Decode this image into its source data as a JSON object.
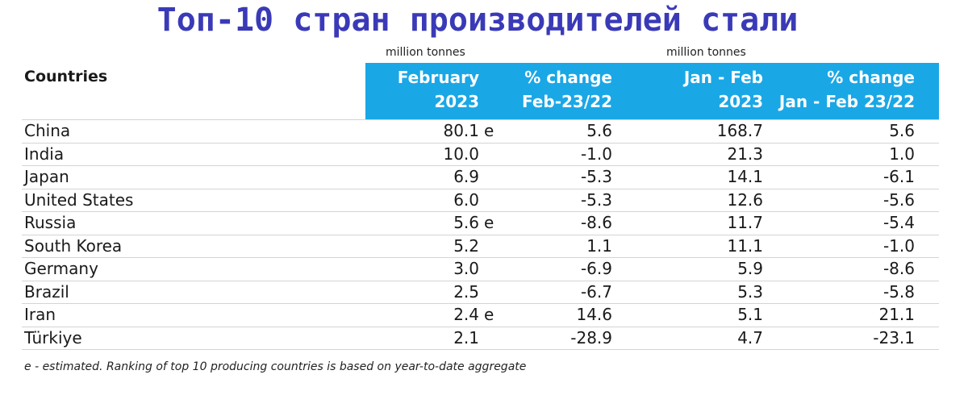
{
  "title": "Топ-10 стран производителей стали",
  "units": {
    "col1": "million tonnes",
    "col3": "million tonnes"
  },
  "headers": {
    "countries": "Countries",
    "col1": {
      "line1": "February",
      "line2": "2023"
    },
    "col2": {
      "line1": "% change",
      "line2": "Feb-23/22"
    },
    "col3": {
      "line1": "Jan - Feb",
      "line2": "2023"
    },
    "col4": {
      "line1": "% change",
      "line2": "Jan - Feb 23/22"
    }
  },
  "rows": [
    {
      "country": "China",
      "feb2023": "80.1",
      "est": "e",
      "pct_feb": "5.6",
      "janfeb2023": "168.7",
      "pct_janfeb": "5.6"
    },
    {
      "country": "India",
      "feb2023": "10.0",
      "est": "",
      "pct_feb": "-1.0",
      "janfeb2023": "21.3",
      "pct_janfeb": "1.0"
    },
    {
      "country": "Japan",
      "feb2023": "6.9",
      "est": "",
      "pct_feb": "-5.3",
      "janfeb2023": "14.1",
      "pct_janfeb": "-6.1"
    },
    {
      "country": "United States",
      "feb2023": "6.0",
      "est": "",
      "pct_feb": "-5.3",
      "janfeb2023": "12.6",
      "pct_janfeb": "-5.6"
    },
    {
      "country": "Russia",
      "feb2023": "5.6",
      "est": "e",
      "pct_feb": "-8.6",
      "janfeb2023": "11.7",
      "pct_janfeb": "-5.4"
    },
    {
      "country": "South Korea",
      "feb2023": "5.2",
      "est": "",
      "pct_feb": "1.1",
      "janfeb2023": "11.1",
      "pct_janfeb": "-1.0"
    },
    {
      "country": "Germany",
      "feb2023": "3.0",
      "est": "",
      "pct_feb": "-6.9",
      "janfeb2023": "5.9",
      "pct_janfeb": "-8.6"
    },
    {
      "country": "Brazil",
      "feb2023": "2.5",
      "est": "",
      "pct_feb": "-6.7",
      "janfeb2023": "5.3",
      "pct_janfeb": "-5.8"
    },
    {
      "country": "Iran",
      "feb2023": "2.4",
      "est": "e",
      "pct_feb": "14.6",
      "janfeb2023": "5.1",
      "pct_janfeb": "21.1"
    },
    {
      "country": "Türkiye",
      "feb2023": "2.1",
      "est": "",
      "pct_feb": "-28.9",
      "janfeb2023": "4.7",
      "pct_janfeb": "-23.1"
    }
  ],
  "footnote": "e - estimated. Ranking of top 10 producing countries is based on year-to-date aggregate",
  "colors": {
    "title": "#3a3ab8",
    "header_band": "#1aa7e6",
    "header_text": "#ffffff",
    "row_rule": "#d4d4d4"
  }
}
